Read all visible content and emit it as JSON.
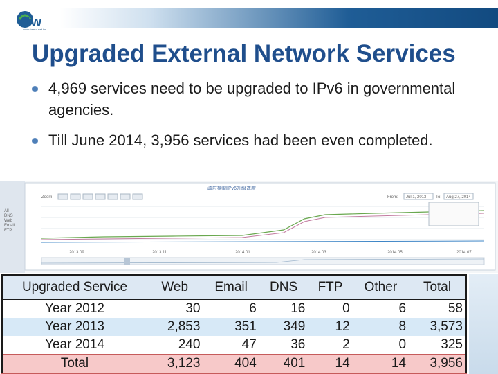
{
  "logo": {
    "caption": "www.twnic.net.tw",
    "colors": {
      "blue": "#1f5d96",
      "green": "#4caf50"
    }
  },
  "slide": {
    "title": "Upgraded External Network Services",
    "bullets": [
      "4,969  services need to be upgraded to IPv6 in governmental agencies.",
      "Till June 2014, 3,956 services had been even completed."
    ]
  },
  "embedded_chart": {
    "title": "政府機關IPv6升級進度",
    "from_label": "From:",
    "from_value": "Jul 1, 2013",
    "to_label": "To:",
    "to_value": "Aug 27, 2014",
    "zoom_label": "Zoom",
    "legend": [
      "All",
      "DNS",
      "Web",
      "Email",
      "FTP"
    ],
    "x_ticks": [
      "2013 09",
      "2013 11",
      "2014 01",
      "2014 03",
      "2014 05",
      "2014 07"
    ]
  },
  "table": {
    "headers": [
      "Upgraded Service",
      "Web",
      "Email",
      "DNS",
      "FTP",
      "Other",
      "Total"
    ],
    "rows": [
      {
        "label": "Year 2012",
        "web": "30",
        "email": "6",
        "dns": "16",
        "ftp": "0",
        "other": "6",
        "total": "58"
      },
      {
        "label": "Year 2013",
        "web": "2,853",
        "email": "351",
        "dns": "349",
        "ftp": "12",
        "other": "8",
        "total": "3,573"
      },
      {
        "label": "Year 2014",
        "web": "240",
        "email": "47",
        "dns": "36",
        "ftp": "2",
        "other": "0",
        "total": "325"
      },
      {
        "label": "Total",
        "web": "3,123",
        "email": "404",
        "dns": "401",
        "ftp": "14",
        "other": "14",
        "total": "3,956"
      }
    ]
  }
}
